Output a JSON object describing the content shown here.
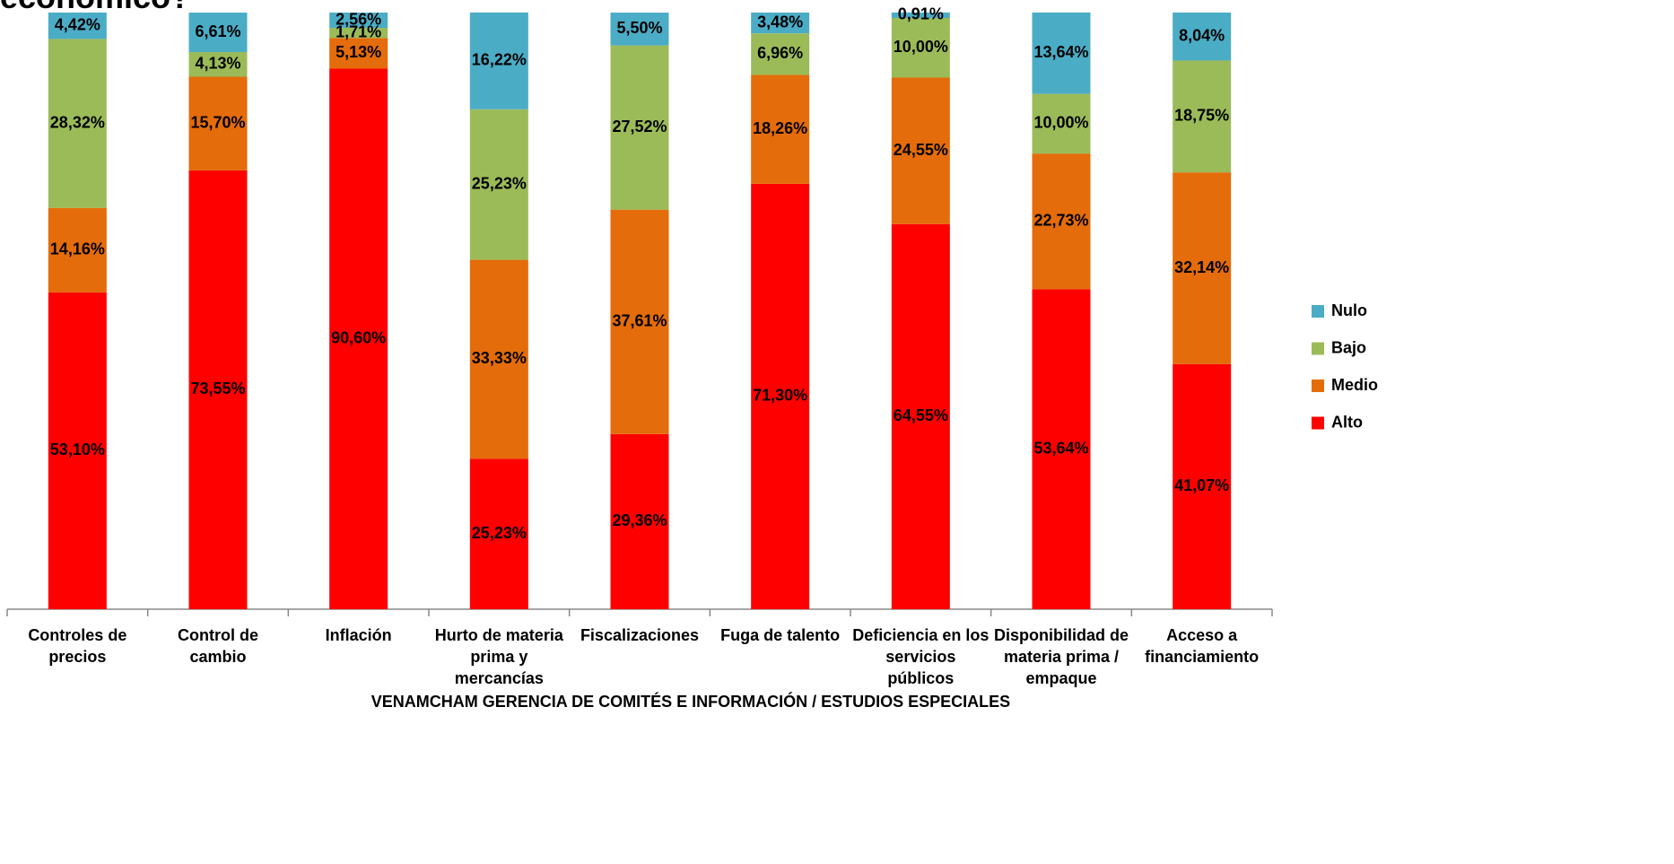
{
  "chart_data": {
    "type": "stacked_bar_100",
    "title": "económico?",
    "footer": "VENAMCHAM GERENCIA DE COMITÉS E INFORMACIÓN / ESTUDIOS ESPECIALES",
    "categories": [
      "Controles de precios",
      "Control de cambio",
      "Inflación",
      "Hurto de materia prima y mercancías",
      "Fiscalizaciones",
      "Fuga de talento",
      "Deficiencia en los servicios públicos",
      "Disponibilidad de materia prima / empaque",
      "Acceso a financiamiento"
    ],
    "ylim": [
      0,
      100
    ],
    "legend": "right",
    "series": [
      {
        "name": "Alto",
        "color": "#ff0000",
        "values": [
          53.1,
          73.55,
          90.6,
          25.23,
          29.36,
          71.3,
          64.55,
          53.64,
          41.07
        ],
        "value_labels": [
          "53,10%",
          "73,55%",
          "90,60%",
          "25,23%",
          "29,36%",
          "71,30%",
          "64,55%",
          "53,64%",
          "41,07%"
        ]
      },
      {
        "name": "Medio",
        "color": "#e46c0a",
        "values": [
          14.16,
          15.7,
          5.13,
          33.33,
          37.61,
          18.26,
          24.55,
          22.73,
          32.14
        ],
        "value_labels": [
          "14,16%",
          "15,70%",
          "5,13%",
          "33,33%",
          "37,61%",
          "18,26%",
          "24,55%",
          "22,73%",
          "32,14%"
        ]
      },
      {
        "name": "Bajo",
        "color": "#9bbb59",
        "values": [
          28.32,
          4.13,
          1.71,
          25.23,
          27.52,
          6.96,
          10.0,
          10.0,
          18.75
        ],
        "value_labels": [
          "28,32%",
          "4,13%",
          "1,71%",
          "25,23%",
          "27,52%",
          "6,96%",
          "10,00%",
          "10,00%",
          "18,75%"
        ]
      },
      {
        "name": "Nulo",
        "color": "#4bacc6",
        "values": [
          4.42,
          6.61,
          2.56,
          16.22,
          5.5,
          3.48,
          0.91,
          13.64,
          8.04
        ],
        "value_labels": [
          "4,42%",
          "6,61%",
          "2,56%",
          "16,22%",
          "5,50%",
          "3,48%",
          "0,91%",
          "13,64%",
          "8,04%"
        ]
      }
    ]
  }
}
